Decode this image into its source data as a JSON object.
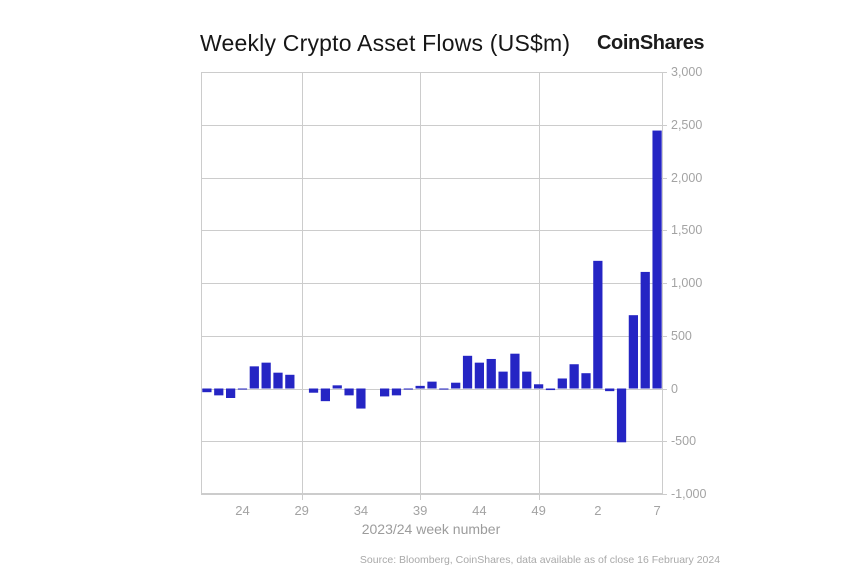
{
  "header": {
    "title": "Weekly Crypto Asset Flows (US$m)",
    "brand": "CoinShares"
  },
  "footer": {
    "source": "Source: Bloomberg, CoinShares, data available as of close 16 February 2024"
  },
  "chart_data": {
    "type": "bar",
    "title": "Weekly Crypto Asset Flows (US$m)",
    "xlabel": "2023/24 week number",
    "ylabel": "",
    "ylim": [
      -1000,
      3000
    ],
    "ytick_step": 500,
    "yticks": [
      {
        "value": 3000,
        "label": "3,000"
      },
      {
        "value": 2500,
        "label": "2,500"
      },
      {
        "value": 2000,
        "label": "2,000"
      },
      {
        "value": 1500,
        "label": "1,500"
      },
      {
        "value": 1000,
        "label": "1,000"
      },
      {
        "value": 500,
        "label": "500"
      },
      {
        "value": 0,
        "label": "0"
      },
      {
        "value": -500,
        "label": "-500"
      },
      {
        "value": -1000,
        "label": "-1,000"
      }
    ],
    "categories": [
      "21",
      "22",
      "23",
      "24",
      "25",
      "26",
      "27",
      "28",
      "29",
      "30",
      "31",
      "32",
      "33",
      "34",
      "35",
      "36",
      "37",
      "38",
      "39",
      "40",
      "41",
      "42",
      "43",
      "44",
      "45",
      "46",
      "47",
      "48",
      "49",
      "50",
      "51",
      "52",
      "1",
      "2",
      "3",
      "4",
      "5",
      "6",
      "7"
    ],
    "values": [
      -35,
      -65,
      -90,
      -10,
      210,
      245,
      150,
      130,
      0,
      -40,
      -120,
      30,
      -65,
      -190,
      0,
      -75,
      -65,
      -10,
      25,
      65,
      -10,
      55,
      310,
      245,
      280,
      160,
      330,
      160,
      40,
      -15,
      95,
      230,
      145,
      1210,
      -25,
      -510,
      695,
      1105,
      2445
    ],
    "xtick_labels": [
      "24",
      "29",
      "34",
      "39",
      "44",
      "49",
      "2",
      "7"
    ],
    "xtick_indices": [
      3,
      8,
      13,
      18,
      23,
      28,
      33,
      38
    ],
    "vgrid_indices": [
      8,
      18,
      28
    ],
    "legend": "none",
    "grid": "on",
    "bar_color": "#2525c4",
    "grid_color": "#cccccc",
    "tick_label_color": "#a3a3a3"
  }
}
